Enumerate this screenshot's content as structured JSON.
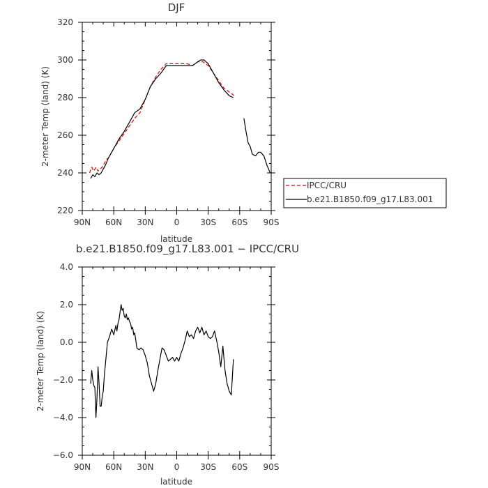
{
  "chart_data": [
    {
      "type": "line",
      "title": "DJF",
      "xlabel": "latitude",
      "ylabel": "2-meter Temp (land) (K)",
      "xlim": [
        90,
        -90
      ],
      "ylim": [
        220,
        320
      ],
      "x_ticks": [
        90,
        60,
        30,
        0,
        -30,
        -60,
        -90
      ],
      "x_tick_labels": [
        "90N",
        "60N",
        "30N",
        "0",
        "30S",
        "60S",
        "90S"
      ],
      "y_ticks": [
        220,
        240,
        260,
        280,
        300,
        320
      ],
      "y_tick_labels": [
        "220",
        "240",
        "260",
        "280",
        "300",
        "320"
      ],
      "legend_position": "right",
      "series": [
        {
          "name": "IPCC/CRU",
          "color": "#e00000",
          "dash": "dashed",
          "x": [
            83,
            81,
            79,
            77,
            75,
            73,
            71,
            69,
            67,
            65,
            60,
            55,
            50,
            45,
            40,
            35,
            30,
            25,
            20,
            15,
            10,
            5,
            0,
            -5,
            -10,
            -15,
            -20,
            -25,
            -30,
            -35,
            -40,
            -45,
            -50,
            -55
          ],
          "y": [
            240,
            243,
            241,
            243,
            241,
            242,
            243,
            245,
            247,
            248,
            253,
            257,
            261,
            265,
            269,
            272,
            279,
            286,
            291,
            295,
            298,
            298,
            298,
            298,
            298,
            297,
            299,
            299,
            297,
            293,
            289,
            285,
            283,
            281
          ]
        },
        {
          "name": "b.e21.B1850.f09_g17.L83.001",
          "color": "#000000",
          "dash": "solid",
          "x": [
            82,
            80,
            78,
            76,
            74,
            72,
            70,
            68,
            65,
            60,
            55,
            50,
            45,
            40,
            35,
            30,
            25,
            20,
            15,
            10,
            5,
            0,
            -5,
            -10,
            -15,
            -20,
            -23,
            -26,
            -30,
            -35,
            -40,
            -45,
            -50,
            -54
          ],
          "y": [
            237,
            239,
            238,
            240,
            239,
            240,
            242,
            244,
            248,
            253,
            258,
            262,
            267,
            272,
            274,
            279,
            286,
            290,
            293,
            297,
            297,
            297,
            297,
            297,
            297,
            299,
            300,
            300,
            298,
            293,
            288,
            284,
            281,
            280
          ]
        },
        {
          "name": "b.e21.B1850.f09_g17.L83.001",
          "color": "#000000",
          "dash": "solid",
          "x": [
            -64,
            -66,
            -68,
            -70,
            -72,
            -75,
            -78,
            -80,
            -83,
            -86,
            -89
          ],
          "y": [
            269,
            262,
            256,
            254,
            250,
            249,
            251,
            251,
            249,
            244,
            240
          ]
        }
      ],
      "legend": [
        {
          "label": "IPCC/CRU",
          "color": "#e00000",
          "dash": "dashed"
        },
        {
          "label": "b.e21.B1850.f09_g17.L83.001",
          "color": "#000000",
          "dash": "solid"
        }
      ]
    },
    {
      "type": "line",
      "title": "b.e21.B1850.f09_g17.L83.001 − IPCC/CRU",
      "xlabel": "latitude",
      "ylabel": "2-meter Temp (land) (K)",
      "xlim": [
        90,
        -90
      ],
      "ylim": [
        -6.0,
        4.0
      ],
      "x_ticks": [
        90,
        60,
        30,
        0,
        -30,
        -60,
        -90
      ],
      "x_tick_labels": [
        "90N",
        "60N",
        "30N",
        "0",
        "30S",
        "60S",
        "90S"
      ],
      "y_ticks": [
        -6.0,
        -4.0,
        -2.0,
        0.0,
        2.0,
        4.0
      ],
      "y_tick_labels": [
        "−6.0",
        "−4.0",
        "−2.0",
        "0.0",
        "2.0",
        "4.0"
      ],
      "series": [
        {
          "color": "#000000",
          "dash": "solid",
          "x": [
            82,
            81,
            80,
            79,
            78,
            77.5,
            77,
            76,
            75,
            74,
            73,
            72,
            71,
            70,
            69,
            68,
            66,
            64,
            62,
            60,
            58,
            57,
            56,
            55,
            54,
            53,
            52,
            51,
            50,
            49,
            48,
            47,
            46,
            45,
            44,
            43,
            42,
            41,
            40,
            38,
            36,
            34,
            32,
            30,
            28,
            26,
            24,
            22,
            20,
            18,
            16,
            14,
            12,
            10,
            8,
            6,
            4,
            2,
            0,
            -2,
            -4,
            -6,
            -8,
            -10,
            -12,
            -14,
            -16,
            -18,
            -20,
            -22,
            -24,
            -26,
            -28,
            -30,
            -32,
            -34,
            -36,
            -38,
            -40,
            -42,
            -44,
            -46,
            -48,
            -50,
            -52,
            -54
          ],
          "y": [
            -2.2,
            -1.5,
            -2.0,
            -2.3,
            -2.4,
            -3.2,
            -4.0,
            -3.0,
            -1.3,
            -2.2,
            -3.4,
            -3.4,
            -2.9,
            -2.6,
            -1.8,
            -1.2,
            0.0,
            0.3,
            0.7,
            0.4,
            0.9,
            0.6,
            1.0,
            1.2,
            1.6,
            2.0,
            1.7,
            1.8,
            1.4,
            1.3,
            1.5,
            1.2,
            1.3,
            1.1,
            1.0,
            0.7,
            0.8,
            0.4,
            0.5,
            -0.3,
            -0.4,
            -0.3,
            -0.4,
            -0.7,
            -1.1,
            -1.8,
            -2.2,
            -2.6,
            -2.2,
            -1.5,
            -0.9,
            -0.3,
            -0.4,
            -0.7,
            -1.0,
            -0.9,
            -0.8,
            -1.0,
            -0.8,
            -1.0,
            -0.6,
            -0.3,
            0.1,
            0.6,
            0.3,
            0.4,
            0.2,
            0.6,
            0.8,
            0.5,
            0.8,
            0.4,
            0.6,
            0.3,
            0.2,
            0.3,
            0.6,
            0.1,
            -0.5,
            -1.3,
            -0.2,
            -1.5,
            -2.2,
            -2.6,
            -2.8,
            -0.9
          ]
        }
      ]
    }
  ]
}
